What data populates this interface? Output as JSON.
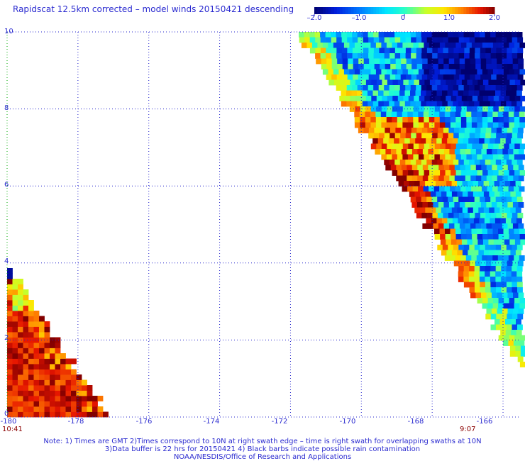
{
  "title": "Rapidscat 12.5km corrected – model winds 20150421 descending",
  "colorbar": {
    "ticks": [
      "–2.0",
      "–1.0",
      "0",
      "1.0",
      "2.0"
    ],
    "range": [
      -2.0,
      2.0
    ]
  },
  "axes": {
    "x_ticks": [
      "-180",
      "-178",
      "-176",
      "-174",
      "-172",
      "-170",
      "-168",
      "-166"
    ],
    "y_ticks": [
      "0",
      "2",
      "4",
      "6",
      "8",
      "10"
    ]
  },
  "times": {
    "left": "10:41",
    "right": "9:07"
  },
  "notes": {
    "line1": "Note: 1) Times are GMT 2)Times correspond to 10N at right swath edge – time is right swath for overlapping swaths at 10N",
    "line2": "3)Data buffer is 22 hrs for 20150421 4) Black barbs indicate possible rain contamination",
    "line3": "NOAA/NESDIS/Office of Research and Applications"
  },
  "chart_data": {
    "type": "heatmap",
    "title": "Rapidscat 12.5km corrected – model winds 20150421 descending",
    "xlim": [
      -180,
      -165.5
    ],
    "ylim": [
      0,
      10
    ],
    "x_ticks": [
      -180,
      -178,
      -176,
      -174,
      -172,
      -170,
      -168,
      -166
    ],
    "y_ticks": [
      0,
      2,
      4,
      6,
      8,
      10
    ],
    "grid": true,
    "colorbar_range": [
      -2.0,
      2.0
    ],
    "colorbar_ticks": [
      -2.0,
      -1.0,
      0,
      1.0,
      2.0
    ],
    "swaths": [
      {
        "region": "lower-left",
        "corners_lon_lat": [
          [
            -180,
            0
          ],
          [
            -180,
            3.9
          ],
          [
            -177.1,
            0
          ]
        ],
        "predominant_value": 2.0,
        "values_near_top": [
          -1.8,
          -1.2,
          0.3,
          1.2
        ]
      },
      {
        "region": "upper-right",
        "corners_lon_lat": [
          [
            -171.8,
            10
          ],
          [
            -165.5,
            10
          ],
          [
            -165.5,
            1.4
          ]
        ],
        "predominant_value": -0.6,
        "values_along_left_edge": [
          0.8,
          1.5,
          2.0,
          1.2,
          0.6
        ],
        "values_near_top_right": [
          -2.0,
          -1.8,
          -1.5
        ]
      }
    ]
  }
}
